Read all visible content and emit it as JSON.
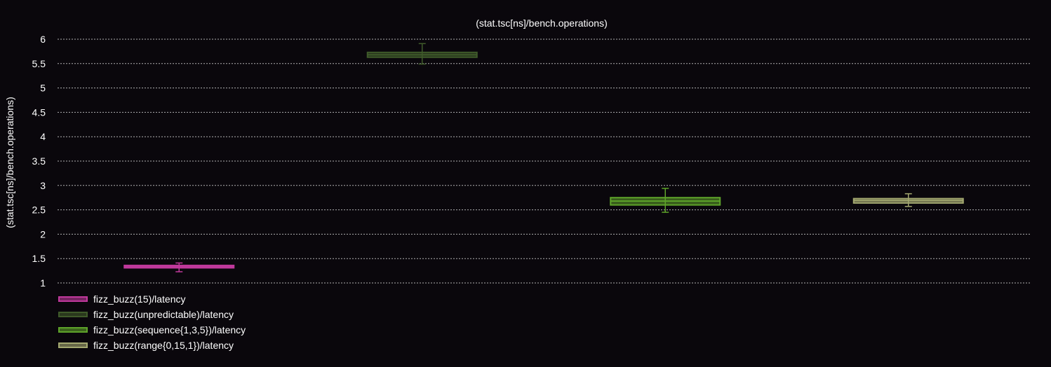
{
  "chart_data": {
    "type": "box",
    "title": "(stat.tsc[ns]/bench.operations)",
    "xlabel": "",
    "ylabel": "(stat.tsc[ns]/bench.operations)",
    "ylim": [
      0.9,
      6.1
    ],
    "yticks": [
      1,
      1.5,
      2,
      2.5,
      3,
      3.5,
      4,
      4.5,
      5,
      5.5,
      6
    ],
    "ytick_labels": [
      "1",
      "1.5",
      "2",
      "2.5",
      "3",
      "3.5",
      "4",
      "4.5",
      "5",
      "5.5",
      "6"
    ],
    "grid": true,
    "legend_placement": "bottom-left",
    "series": [
      {
        "name": "fizz_buzz(15)/latency",
        "color": "#c0399c",
        "q1": 1.31,
        "median": 1.33,
        "q3": 1.36,
        "whisker_low": 1.23,
        "whisker_high": 1.41
      },
      {
        "name": "fizz_buzz(unpredictable)/latency",
        "color": "#3f5a2a",
        "q1": 5.63,
        "median": 5.68,
        "q3": 5.73,
        "whisker_low": 5.49,
        "whisker_high": 5.91
      },
      {
        "name": "fizz_buzz(sequence{1,3,5})/latency",
        "color": "#5ea32a",
        "q1": 2.6,
        "median": 2.68,
        "q3": 2.75,
        "whisker_low": 2.45,
        "whisker_high": 2.94
      },
      {
        "name": "fizz_buzz(range{0,15,1})/latency",
        "color": "#a3a870",
        "q1": 2.64,
        "median": 2.69,
        "q3": 2.73,
        "whisker_low": 2.57,
        "whisker_high": 2.83
      }
    ]
  }
}
